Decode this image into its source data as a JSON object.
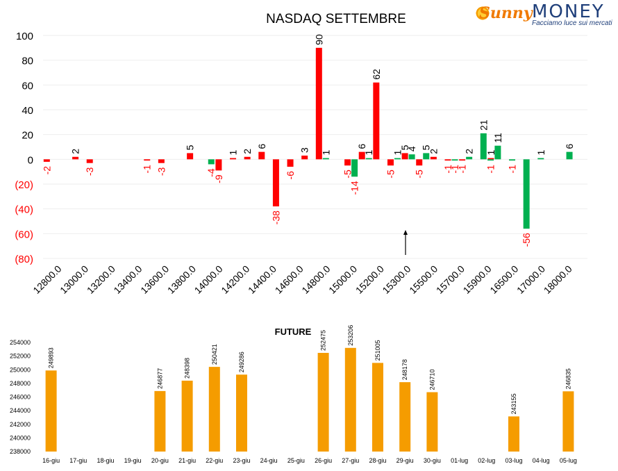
{
  "logo": {
    "brand_a": "Sunny",
    "brand_b": "MONEY",
    "tagline": "Facciamo luce sui mercati"
  },
  "colors": {
    "call": "#ff0000",
    "put": "#00b050",
    "future": "#f59c00",
    "axis_text": "#000000",
    "negative_text": "#ff0000"
  },
  "chart_data": [
    {
      "type": "bar",
      "title": "NASDAQ SETTEMBRE",
      "ylim": [
        -80,
        100
      ],
      "yticks": [
        100,
        80,
        60,
        40,
        20,
        0,
        -20,
        -40,
        -60,
        -80
      ],
      "ytick_labels": [
        "100",
        "80",
        "60",
        "40",
        "20",
        "0",
        "(20)",
        "(40)",
        "(60)",
        "(80)"
      ],
      "categories": [
        "12800.0",
        "13000.0",
        "13200.0",
        "13400.0",
        "13600.0",
        "13800.0",
        "14000.0",
        "14200.0",
        "14400.0",
        "14600.0",
        "14800.0",
        "15000.0",
        "15200.0",
        "15300.0",
        "15500.0",
        "15700.0",
        "15900.0",
        "16500.0",
        "17000.0",
        "18000.0"
      ],
      "series": [
        {
          "color": "red",
          "points": [
            {
              "slot": 0,
              "v": -2
            },
            {
              "slot": 2,
              "v": 2
            },
            {
              "slot": 3,
              "v": -3
            },
            {
              "slot": 7,
              "v": -1
            },
            {
              "slot": 8,
              "v": -3
            },
            {
              "slot": 10,
              "v": 5
            },
            {
              "slot": 12,
              "v": -9
            },
            {
              "slot": 13,
              "v": 1
            },
            {
              "slot": 14,
              "v": 2
            },
            {
              "slot": 15,
              "v": 6
            },
            {
              "slot": 16,
              "v": -38
            },
            {
              "slot": 17,
              "v": -6
            },
            {
              "slot": 18,
              "v": 3
            },
            {
              "slot": 19,
              "v": 90
            },
            {
              "slot": 21,
              "v": -5
            },
            {
              "slot": 22,
              "v": 6
            },
            {
              "slot": 23,
              "v": 62
            },
            {
              "slot": 24,
              "v": -5
            },
            {
              "slot": 25,
              "v": 5
            },
            {
              "slot": 26,
              "v": -5
            },
            {
              "slot": 27,
              "v": 2
            },
            {
              "slot": 28,
              "v": -1
            },
            {
              "slot": 29,
              "v": -1
            },
            {
              "slot": 31,
              "v": 1
            }
          ]
        },
        {
          "color": "green",
          "points": [
            {
              "slot": 11,
              "v": -4
            },
            {
              "slot": 19,
              "v": 1
            },
            {
              "slot": 21,
              "v": -14
            },
            {
              "slot": 22,
              "v": 1
            },
            {
              "slot": 24,
              "v": 1
            },
            {
              "slot": 25,
              "v": 4
            },
            {
              "slot": 26,
              "v": 5
            },
            {
              "slot": 28,
              "v": -1
            },
            {
              "slot": 29,
              "v": 2
            },
            {
              "slot": 30,
              "v": 21
            },
            {
              "slot": 31,
              "v": 11
            },
            {
              "slot": 30.5,
              "v": -1
            },
            {
              "slot": 32,
              "v": -1
            },
            {
              "slot": 33,
              "v": -56
            },
            {
              "slot": 34,
              "v": 1
            },
            {
              "slot": 36,
              "v": 6
            }
          ]
        }
      ]
    },
    {
      "type": "bar",
      "title": "FUTURE",
      "ylim": [
        238000,
        254000
      ],
      "yticks": [
        254000,
        252000,
        250000,
        248000,
        246000,
        244000,
        242000,
        240000,
        238000
      ],
      "categories": [
        "16-giu",
        "17-giu",
        "18-giu",
        "19-giu",
        "20-giu",
        "21-giu",
        "22-giu",
        "23-giu",
        "24-giu",
        "25-giu",
        "26-giu",
        "27-giu",
        "28-giu",
        "29-giu",
        "30-giu",
        "01-lug",
        "02-lug",
        "03-lug",
        "04-lug",
        "05-lug"
      ],
      "values": [
        249893,
        null,
        null,
        null,
        246877,
        248398,
        250421,
        249286,
        null,
        null,
        252475,
        253206,
        251005,
        248178,
        246710,
        null,
        null,
        243155,
        null,
        246835
      ]
    }
  ]
}
